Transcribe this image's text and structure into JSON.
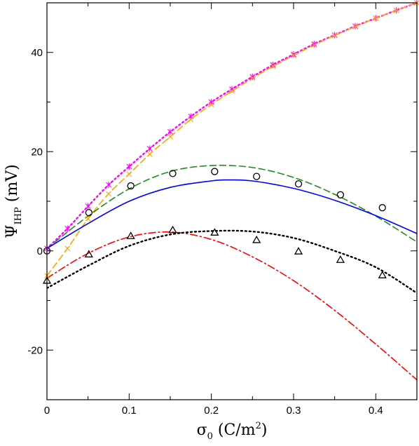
{
  "chart_data": {
    "type": "line",
    "xlabel": {
      "main": "σ",
      "sub": "0",
      "rest": " (C/m",
      "sup": "2",
      "end": ")"
    },
    "ylabel": {
      "main": "Ψ",
      "sub": "IHP",
      "rest": " (mV)"
    },
    "xlim": [
      0,
      0.45
    ],
    "ylim": [
      -30,
      50
    ],
    "xticks": [
      0,
      0.1,
      0.2,
      0.3,
      0.4
    ],
    "xtick_labels": [
      "0",
      "0.1",
      "0.2",
      "0.3",
      "0.4"
    ],
    "yticks": [
      -20,
      0,
      20,
      40
    ],
    "ytick_labels": [
      "-20",
      "0",
      "20",
      "40"
    ],
    "grid": false,
    "series": [
      {
        "style": "dotted",
        "color": "#ff00ff",
        "marker": "star",
        "x": [
          0,
          0.025,
          0.05,
          0.075,
          0.1,
          0.125,
          0.15,
          0.175,
          0.2,
          0.225,
          0.25,
          0.275,
          0.3,
          0.325,
          0.35,
          0.375,
          0.4,
          0.425,
          0.45
        ],
        "y": [
          0.5,
          4.5,
          9,
          13.3,
          17,
          20.6,
          24,
          27.1,
          30,
          32.6,
          35.1,
          37.5,
          39.6,
          41.7,
          43.5,
          45.3,
          46.9,
          48.5,
          50
        ]
      },
      {
        "style": "dashed",
        "color": "#ffa500",
        "marker": "x",
        "x": [
          0,
          0.025,
          0.05,
          0.075,
          0.1,
          0.125,
          0.15,
          0.175,
          0.2,
          0.225,
          0.25,
          0.275,
          0.3,
          0.325,
          0.35,
          0.375,
          0.4,
          0.425,
          0.45
        ],
        "y": [
          -5,
          0.5,
          6.5,
          11.5,
          15.5,
          19.5,
          23,
          26.5,
          29.5,
          32.2,
          34.8,
          37.2,
          39.4,
          41.5,
          43.4,
          45.2,
          46.9,
          48.5,
          50
        ]
      },
      {
        "style": "dashed",
        "color": "#228b22",
        "marker": "none",
        "x": [
          0,
          0.05,
          0.1,
          0.15,
          0.2,
          0.25,
          0.3,
          0.35,
          0.4,
          0.45
        ],
        "y": [
          0.5,
          7,
          12.5,
          16,
          17.2,
          16.8,
          14.8,
          11.4,
          7,
          1.8
        ]
      },
      {
        "style": "solid",
        "color": "#0000ff",
        "marker": "none",
        "x": [
          0,
          0.05,
          0.1,
          0.15,
          0.2,
          0.22,
          0.25,
          0.3,
          0.35,
          0.4,
          0.45
        ],
        "y": [
          0.5,
          5.5,
          10,
          12.8,
          14.1,
          14.3,
          14.1,
          12.6,
          10.2,
          7.1,
          3.5
        ]
      },
      {
        "style": "dashdot",
        "color": "#ff0000",
        "marker": "none",
        "x": [
          0,
          0.05,
          0.1,
          0.15,
          0.2,
          0.25,
          0.3,
          0.35,
          0.4,
          0.45
        ],
        "y": [
          -5.5,
          -0.5,
          2.8,
          3.8,
          2.3,
          -1.2,
          -6,
          -12,
          -18.8,
          -26
        ]
      },
      {
        "style": "dotted",
        "color": "#000000",
        "marker": "none",
        "x": [
          0,
          0.05,
          0.1,
          0.15,
          0.2,
          0.25,
          0.3,
          0.35,
          0.4,
          0.45
        ],
        "y": [
          -7.5,
          -3,
          1,
          3.3,
          4,
          3.9,
          2.6,
          0,
          -3.3,
          -8.5
        ]
      },
      {
        "style": "none",
        "color": "#000000",
        "marker": "circle",
        "x": [
          0,
          0.051,
          0.102,
          0.153,
          0.204,
          0.255,
          0.306,
          0.357,
          0.408
        ],
        "y": [
          0,
          7.7,
          13.1,
          15.6,
          16,
          15,
          13.5,
          11.3,
          8.7
        ]
      },
      {
        "style": "none",
        "color": "#000000",
        "marker": "triangle",
        "x": [
          0,
          0.051,
          0.102,
          0.153,
          0.204,
          0.255,
          0.306,
          0.357,
          0.408
        ],
        "y": [
          -6,
          -0.7,
          3,
          4.2,
          3.7,
          2.2,
          -0.1,
          -1.8,
          -4.9
        ]
      }
    ]
  }
}
